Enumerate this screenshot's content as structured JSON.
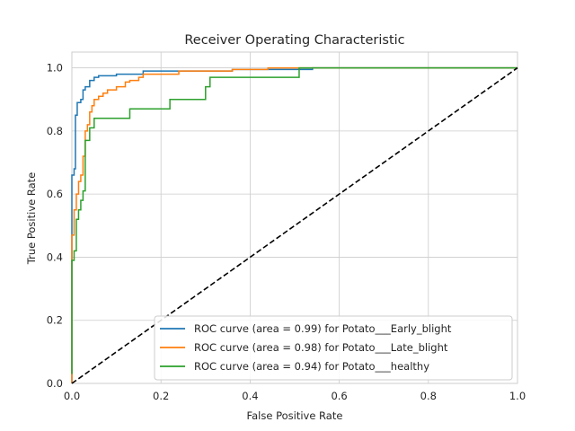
{
  "chart_data": {
    "type": "line",
    "title": "Receiver Operating Characteristic",
    "xlabel": "False Positive Rate",
    "ylabel": "True Positive Rate",
    "xlim": [
      0.0,
      1.0
    ],
    "ylim": [
      0.0,
      1.05
    ],
    "xticks": [
      0.0,
      0.2,
      0.4,
      0.6,
      0.8,
      1.0
    ],
    "yticks": [
      0.0,
      0.2,
      0.4,
      0.6,
      0.8,
      1.0
    ],
    "xtick_labels": [
      "0.0",
      "0.2",
      "0.4",
      "0.6",
      "0.8",
      "1.0"
    ],
    "ytick_labels": [
      "0.0",
      "0.2",
      "0.4",
      "0.6",
      "0.8",
      "1.0"
    ],
    "grid": true,
    "legend_position": "lower-right",
    "series": [
      {
        "name": "ROC curve (area = 0.99) for Potato___Early_blight",
        "color": "#1f77b4",
        "points": [
          [
            0,
            0
          ],
          [
            0,
            0.66
          ],
          [
            0.005,
            0.66
          ],
          [
            0.005,
            0.68
          ],
          [
            0.008,
            0.68
          ],
          [
            0.008,
            0.85
          ],
          [
            0.012,
            0.85
          ],
          [
            0.012,
            0.89
          ],
          [
            0.02,
            0.89
          ],
          [
            0.02,
            0.9
          ],
          [
            0.025,
            0.9
          ],
          [
            0.025,
            0.93
          ],
          [
            0.03,
            0.93
          ],
          [
            0.03,
            0.94
          ],
          [
            0.04,
            0.94
          ],
          [
            0.04,
            0.96
          ],
          [
            0.05,
            0.96
          ],
          [
            0.05,
            0.97
          ],
          [
            0.06,
            0.97
          ],
          [
            0.06,
            0.975
          ],
          [
            0.1,
            0.975
          ],
          [
            0.1,
            0.98
          ],
          [
            0.16,
            0.98
          ],
          [
            0.16,
            0.99
          ],
          [
            0.36,
            0.99
          ],
          [
            0.36,
            0.995
          ],
          [
            0.54,
            0.995
          ],
          [
            0.54,
            1.0
          ],
          [
            1,
            1.0
          ]
        ]
      },
      {
        "name": "ROC curve (area = 0.98) for Potato___Late_blight",
        "color": "#ff7f0e",
        "points": [
          [
            0,
            0
          ],
          [
            0,
            0.47
          ],
          [
            0.005,
            0.47
          ],
          [
            0.005,
            0.55
          ],
          [
            0.01,
            0.55
          ],
          [
            0.01,
            0.6
          ],
          [
            0.015,
            0.6
          ],
          [
            0.015,
            0.64
          ],
          [
            0.02,
            0.64
          ],
          [
            0.02,
            0.66
          ],
          [
            0.025,
            0.66
          ],
          [
            0.025,
            0.72
          ],
          [
            0.03,
            0.72
          ],
          [
            0.03,
            0.8
          ],
          [
            0.035,
            0.8
          ],
          [
            0.035,
            0.82
          ],
          [
            0.04,
            0.82
          ],
          [
            0.04,
            0.86
          ],
          [
            0.045,
            0.86
          ],
          [
            0.045,
            0.88
          ],
          [
            0.05,
            0.88
          ],
          [
            0.05,
            0.9
          ],
          [
            0.06,
            0.9
          ],
          [
            0.06,
            0.91
          ],
          [
            0.07,
            0.91
          ],
          [
            0.07,
            0.92
          ],
          [
            0.08,
            0.92
          ],
          [
            0.08,
            0.93
          ],
          [
            0.1,
            0.93
          ],
          [
            0.1,
            0.94
          ],
          [
            0.12,
            0.94
          ],
          [
            0.12,
            0.955
          ],
          [
            0.13,
            0.955
          ],
          [
            0.13,
            0.96
          ],
          [
            0.15,
            0.96
          ],
          [
            0.15,
            0.97
          ],
          [
            0.16,
            0.97
          ],
          [
            0.16,
            0.98
          ],
          [
            0.24,
            0.98
          ],
          [
            0.24,
            0.99
          ],
          [
            0.36,
            0.99
          ],
          [
            0.36,
            0.995
          ],
          [
            0.44,
            0.995
          ],
          [
            0.44,
            1.0
          ],
          [
            1,
            1.0
          ]
        ]
      },
      {
        "name": "ROC curve (area = 0.94) for Potato___healthy",
        "color": "#2ca02c",
        "points": [
          [
            0,
            0.03
          ],
          [
            0,
            0.39
          ],
          [
            0.005,
            0.39
          ],
          [
            0.005,
            0.42
          ],
          [
            0.01,
            0.42
          ],
          [
            0.01,
            0.52
          ],
          [
            0.015,
            0.52
          ],
          [
            0.015,
            0.55
          ],
          [
            0.02,
            0.55
          ],
          [
            0.02,
            0.58
          ],
          [
            0.025,
            0.58
          ],
          [
            0.025,
            0.61
          ],
          [
            0.03,
            0.61
          ],
          [
            0.03,
            0.77
          ],
          [
            0.04,
            0.77
          ],
          [
            0.04,
            0.81
          ],
          [
            0.05,
            0.81
          ],
          [
            0.05,
            0.84
          ],
          [
            0.13,
            0.84
          ],
          [
            0.13,
            0.87
          ],
          [
            0.22,
            0.87
          ],
          [
            0.22,
            0.9
          ],
          [
            0.3,
            0.9
          ],
          [
            0.3,
            0.94
          ],
          [
            0.31,
            0.94
          ],
          [
            0.31,
            0.97
          ],
          [
            0.51,
            0.97
          ],
          [
            0.51,
            1.0
          ],
          [
            1,
            1.0
          ]
        ]
      },
      {
        "name": "",
        "color": "#000000",
        "dashed": true,
        "points": [
          [
            0,
            0
          ],
          [
            1,
            1
          ]
        ]
      }
    ]
  }
}
